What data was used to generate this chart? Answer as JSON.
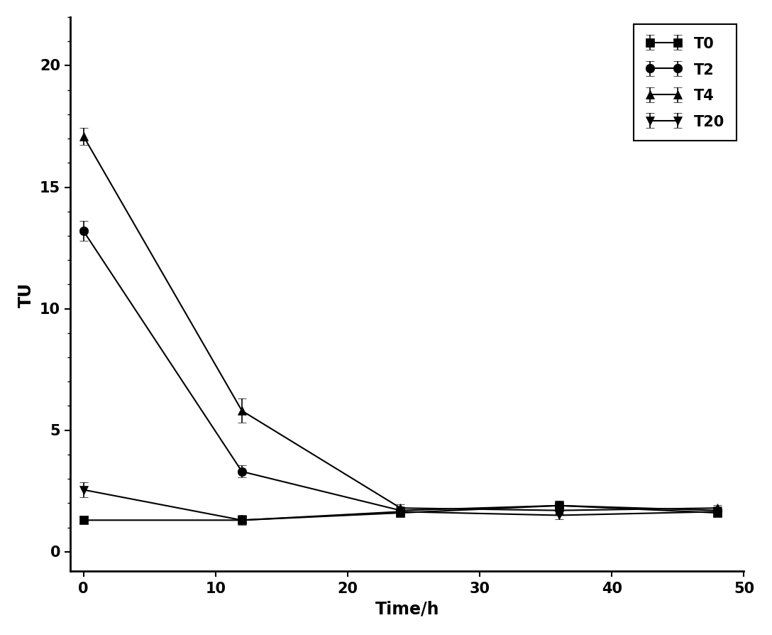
{
  "x": [
    0,
    12,
    24,
    36,
    48
  ],
  "series": {
    "T0": {
      "y": [
        1.3,
        1.3,
        1.6,
        1.9,
        1.6
      ],
      "yerr": [
        0.15,
        0.15,
        0.1,
        0.2,
        0.15
      ],
      "marker": "s",
      "label": "T0"
    },
    "T2": {
      "y": [
        13.2,
        3.3,
        1.7,
        1.9,
        1.7
      ],
      "yerr": [
        0.4,
        0.25,
        0.15,
        0.2,
        0.15
      ],
      "marker": "o",
      "label": "T2"
    },
    "T4": {
      "y": [
        17.1,
        5.8,
        1.8,
        1.7,
        1.8
      ],
      "yerr": [
        0.35,
        0.5,
        0.15,
        0.1,
        0.12
      ],
      "marker": "^",
      "label": "T4"
    },
    "T20": {
      "y": [
        2.55,
        1.3,
        1.65,
        1.5,
        1.65
      ],
      "yerr": [
        0.3,
        0.2,
        0.1,
        0.15,
        0.12
      ],
      "marker": "v",
      "label": "T20"
    }
  },
  "series_order": [
    "T0",
    "T2",
    "T4",
    "T20"
  ],
  "xlabel": "Time/h",
  "ylabel": "TU",
  "xlim": [
    -1,
    50
  ],
  "ylim": [
    -0.8,
    22
  ],
  "xticks": [
    0,
    10,
    20,
    30,
    40,
    50
  ],
  "yticks": [
    0,
    5,
    10,
    15,
    20
  ],
  "line_color": "#000000",
  "marker_color": "#000000",
  "marker_size": 9,
  "linewidth": 1.5,
  "capsize": 4,
  "elinewidth": 1.2,
  "legend_fontsize": 15,
  "axis_label_fontsize": 17,
  "tick_fontsize": 15,
  "background_color": "#ffffff",
  "figure_width": 10.88,
  "figure_height": 8.95,
  "dpi": 100
}
